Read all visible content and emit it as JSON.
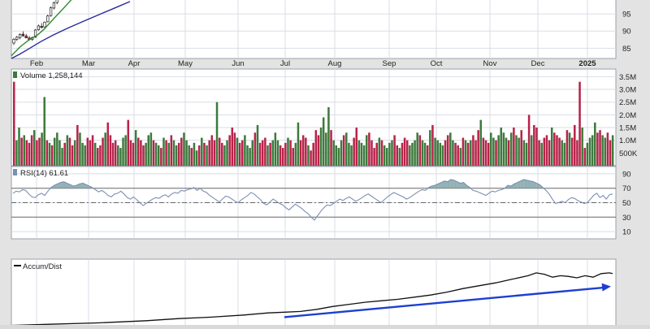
{
  "chart_data": {
    "type": "line",
    "months": [
      "Feb",
      "Mar",
      "Apr",
      "May",
      "Jun",
      "Jul",
      "Aug",
      "Sep",
      "Oct",
      "Nov",
      "Dec",
      "2025"
    ],
    "price_panel": {
      "y_ticks": [
        85,
        90,
        95
      ],
      "ylim": [
        82,
        100
      ],
      "candles": [
        {
          "x": "Jan-25",
          "o": 86.5,
          "h": 88.0,
          "l": 85.9,
          "c": 87.6,
          "up": true
        },
        {
          "x": "Jan-26",
          "o": 87.6,
          "h": 88.6,
          "l": 87.1,
          "c": 88.2,
          "up": true
        },
        {
          "x": "Jan-29",
          "o": 88.1,
          "h": 89.3,
          "l": 87.6,
          "c": 89.0,
          "up": true
        },
        {
          "x": "Jan-30",
          "o": 89.1,
          "h": 89.9,
          "l": 88.4,
          "c": 88.6,
          "up": false
        },
        {
          "x": "Jan-31",
          "o": 88.6,
          "h": 89.2,
          "l": 87.9,
          "c": 88.0,
          "up": false
        },
        {
          "x": "Feb-01",
          "o": 88.0,
          "h": 88.6,
          "l": 87.2,
          "c": 87.5,
          "up": false
        },
        {
          "x": "Feb-02",
          "o": 87.6,
          "h": 88.4,
          "l": 87.1,
          "c": 88.1,
          "up": true
        },
        {
          "x": "Feb-05",
          "o": 88.2,
          "h": 90.6,
          "l": 88.0,
          "c": 90.3,
          "up": true
        },
        {
          "x": "Feb-06",
          "o": 90.4,
          "h": 91.9,
          "l": 90.1,
          "c": 91.5,
          "up": true
        },
        {
          "x": "Feb-07",
          "o": 91.4,
          "h": 92.3,
          "l": 90.7,
          "c": 91.1,
          "up": false
        },
        {
          "x": "Feb-08",
          "o": 91.2,
          "h": 92.8,
          "l": 90.9,
          "c": 92.6,
          "up": true
        },
        {
          "x": "Feb-09",
          "o": 92.7,
          "h": 94.8,
          "l": 92.5,
          "c": 94.4,
          "up": true
        },
        {
          "x": "Feb-12",
          "o": 94.5,
          "h": 97.2,
          "l": 94.2,
          "c": 96.8,
          "up": true
        },
        {
          "x": "Feb-13",
          "o": 96.7,
          "h": 98.6,
          "l": 96.3,
          "c": 98.2,
          "up": true
        },
        {
          "x": "Feb-14",
          "o": 98.3,
          "h": 99.9,
          "l": 97.8,
          "c": 99.6,
          "up": true
        }
      ],
      "ma_short": [
        [
          0,
          82.8
        ],
        [
          8,
          85.4
        ],
        [
          16,
          87.4
        ],
        [
          24,
          88.9
        ],
        [
          30,
          90.6
        ],
        [
          38,
          93.4
        ],
        [
          48,
          96.8
        ],
        [
          56,
          99.6
        ],
        [
          60,
          100.8
        ]
      ],
      "ma_long": [
        [
          0,
          82.0
        ],
        [
          10,
          83.2
        ],
        [
          22,
          84.9
        ],
        [
          36,
          86.9
        ],
        [
          52,
          88.9
        ],
        [
          70,
          90.9
        ],
        [
          90,
          93.0
        ],
        [
          110,
          95.0
        ],
        [
          130,
          97.0
        ],
        [
          146,
          98.6
        ]
      ]
    },
    "volume_panel": {
      "label": "Volume 1,258,144",
      "y_ticks": [
        "500K",
        "1.0M",
        "1.5M",
        "2.0M",
        "2.5M",
        "3.0M",
        "3.5M"
      ],
      "y_tick_values": [
        500000,
        1000000,
        1500000,
        2000000,
        2500000,
        3000000,
        3500000
      ],
      "ylim": [
        0,
        3800000
      ],
      "values": [
        3300000,
        1000000,
        1500000,
        1100000,
        1200000,
        1000000,
        900000,
        1200000,
        1400000,
        1000000,
        1100000,
        1300000,
        2700000,
        1000000,
        900000,
        800000,
        1100000,
        1300000,
        1000000,
        700000,
        900000,
        1200000,
        1100000,
        800000,
        1000000,
        1600000,
        1300000,
        900000,
        800000,
        1100000,
        1000000,
        1200000,
        900000,
        700000,
        800000,
        1100000,
        1300000,
        1700000,
        1200000,
        900000,
        1000000,
        800000,
        700000,
        1100000,
        1200000,
        1800000,
        1000000,
        900000,
        1400000,
        1100000,
        1000000,
        800000,
        900000,
        1200000,
        1300000,
        1000000,
        900000,
        800000,
        700000,
        1100000,
        1000000,
        900000,
        1200000,
        1000000,
        800000,
        900000,
        1100000,
        1300000,
        1000000,
        800000,
        700000,
        900000,
        600000,
        800000,
        1100000,
        900000,
        800000,
        1000000,
        1200000,
        1000000,
        2500000,
        1100000,
        900000,
        800000,
        1000000,
        1200000,
        1500000,
        1300000,
        1100000,
        900000,
        1000000,
        1200000,
        800000,
        700000,
        1000000,
        1300000,
        1600000,
        900000,
        1000000,
        1100000,
        800000,
        900000,
        1000000,
        1300000,
        1000000,
        800000,
        700000,
        900000,
        1100000,
        1000000,
        700000,
        900000,
        1700000,
        1000000,
        1200000,
        1100000,
        800000,
        600000,
        900000,
        1400000,
        1200000,
        1500000,
        1900000,
        1300000,
        2300000,
        1400000,
        1000000,
        800000,
        700000,
        1000000,
        1200000,
        1300000,
        900000,
        800000,
        1100000,
        1500000,
        1000000,
        900000,
        800000,
        1200000,
        1300000,
        1000000,
        700000,
        900000,
        1100000,
        1000000,
        800000,
        700000,
        900000,
        1000000,
        1200000,
        800000,
        700000,
        900000,
        1100000,
        1000000,
        800000,
        900000,
        1000000,
        1300000,
        1200000,
        1000000,
        900000,
        800000,
        1400000,
        1600000,
        1100000,
        1000000,
        900000,
        800000,
        1000000,
        1200000,
        1300000,
        1000000,
        900000,
        800000,
        700000,
        1100000,
        1000000,
        900000,
        1000000,
        1200000,
        1000000,
        1400000,
        1800000,
        1100000,
        1000000,
        900000,
        1300000,
        1100000,
        1000000,
        1200000,
        1500000,
        1300000,
        1100000,
        1000000,
        1300000,
        1500000,
        1200000,
        1100000,
        1400000,
        1000000,
        900000,
        2000000,
        1200000,
        1600000,
        1500000,
        1000000,
        900000,
        1100000,
        1200000,
        1000000,
        1500000,
        1300000,
        1200000,
        1100000,
        1000000,
        900000,
        1400000,
        1300000,
        1100000,
        1600000,
        1000000,
        3300000,
        1500000,
        700000,
        900000,
        1100000,
        1200000,
        1700000,
        1300000,
        1400000,
        1200000,
        1100000,
        1300000,
        1000000,
        1200000
      ]
    },
    "rsi_panel": {
      "label": "RSI(14) 61.61",
      "y_ticks": [
        10,
        30,
        50,
        70,
        90
      ],
      "ylim": [
        0,
        100
      ],
      "overbought": 70,
      "oversold": 30,
      "midline": 50,
      "values": [
        63,
        66,
        65,
        68,
        67,
        62,
        58,
        57,
        61,
        63,
        60,
        66,
        71,
        74,
        76,
        78,
        79,
        77,
        75,
        73,
        74,
        76,
        77,
        75,
        73,
        71,
        68,
        65,
        67,
        64,
        60,
        58,
        62,
        63,
        66,
        62,
        57,
        55,
        58,
        54,
        50,
        46,
        49,
        52,
        55,
        57,
        56,
        59,
        61,
        58,
        62,
        64,
        63,
        67,
        66,
        68,
        69,
        71,
        67,
        70,
        66,
        64,
        60,
        57,
        54,
        51,
        55,
        59,
        58,
        55,
        52,
        50,
        54,
        57,
        60,
        64,
        62,
        58,
        54,
        49,
        47,
        51,
        55,
        52,
        49,
        47,
        43,
        40,
        44,
        48,
        45,
        42,
        38,
        35,
        30,
        26,
        32,
        38,
        43,
        47,
        46,
        49,
        52,
        55,
        53,
        56,
        58,
        55,
        52,
        54,
        57,
        60,
        62,
        59,
        56,
        53,
        50,
        54,
        58,
        61,
        64,
        62,
        60,
        58,
        55,
        57,
        60,
        63,
        66,
        68,
        67,
        71,
        73,
        74,
        76,
        78,
        80,
        79,
        82,
        81,
        79,
        77,
        78,
        74,
        71,
        67,
        66,
        64,
        62,
        60,
        63,
        66,
        65,
        67,
        68,
        70,
        74,
        73,
        76,
        78,
        80,
        82,
        81,
        80,
        79,
        77,
        75,
        71,
        67,
        62,
        55,
        49,
        50,
        52,
        50,
        54,
        57,
        56,
        53,
        51,
        49,
        50,
        55,
        60,
        63,
        57,
        60,
        55,
        61,
        62
      ]
    },
    "ad_panel": {
      "label": "Accum/Dist",
      "ylim": [
        0,
        100
      ],
      "values": [
        [
          0,
          0
        ],
        [
          60,
          2
        ],
        [
          120,
          4
        ],
        [
          180,
          7
        ],
        [
          220,
          10
        ],
        [
          260,
          12
        ],
        [
          300,
          15
        ],
        [
          330,
          18
        ],
        [
          350,
          19
        ],
        [
          370,
          20
        ],
        [
          390,
          23
        ],
        [
          410,
          27
        ],
        [
          430,
          30
        ],
        [
          450,
          33
        ],
        [
          470,
          35
        ],
        [
          490,
          37
        ],
        [
          510,
          40
        ],
        [
          530,
          43
        ],
        [
          550,
          47
        ],
        [
          570,
          52
        ],
        [
          590,
          56
        ],
        [
          610,
          60
        ],
        [
          630,
          65
        ],
        [
          650,
          70
        ],
        [
          660,
          74
        ],
        [
          670,
          72
        ],
        [
          680,
          68
        ],
        [
          690,
          70
        ],
        [
          700,
          69
        ],
        [
          710,
          67
        ],
        [
          720,
          70
        ],
        [
          730,
          68
        ],
        [
          740,
          73
        ],
        [
          750,
          74
        ],
        [
          754,
          73
        ]
      ],
      "trend_arrow": [
        [
          350,
          12
        ],
        [
          752,
          55
        ]
      ]
    },
    "colors": {
      "up": "#3d7a3d",
      "down": "#b8234a",
      "ma_short": "#2f8b2f",
      "ma_long": "#2a2a9a",
      "rsi_line": "#7b8fb3",
      "rsi_fill": "#7fa3a8",
      "ad_line": "#111111",
      "arrow": "#1e3fd1",
      "grid": "#d8dde6",
      "panel_bg": "#ffffff",
      "frame": "#9aa0aa"
    }
  }
}
